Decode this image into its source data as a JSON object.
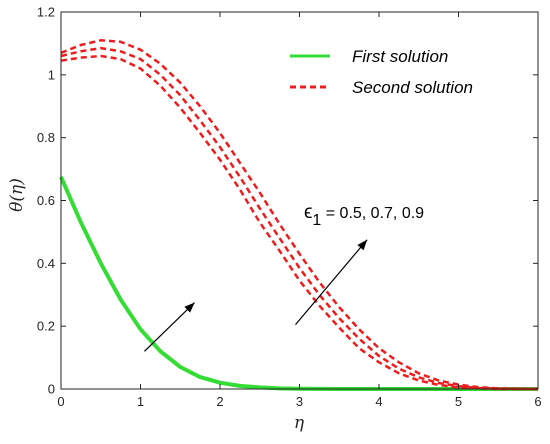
{
  "chart_data": {
    "type": "line",
    "xlabel": "η",
    "ylabel": "θ(η)",
    "xlim": [
      0,
      6
    ],
    "ylim": [
      0,
      1.2
    ],
    "xticks": [
      "0",
      "1",
      "2",
      "3",
      "4",
      "5",
      "6"
    ],
    "yticks": [
      "0",
      "0.2",
      "0.4",
      "0.6",
      "0.8",
      "1",
      "1.2"
    ],
    "grid": false,
    "legend_position": "top-right",
    "series": [
      {
        "name": "First solution",
        "style": "solid",
        "color": "#33dd33",
        "x": [
          0,
          0.25,
          0.5,
          0.75,
          1.0,
          1.25,
          1.5,
          1.75,
          2.0,
          2.25,
          2.5,
          2.75,
          3.0,
          3.5,
          4.0,
          5.0,
          6.0
        ],
        "y": [
          0.675,
          0.53,
          0.4,
          0.285,
          0.19,
          0.12,
          0.07,
          0.038,
          0.02,
          0.01,
          0.005,
          0.002,
          0.001,
          0,
          0,
          0,
          0
        ]
      },
      {
        "name": "Second solution",
        "style": "dashed",
        "color": "#ee1c1c",
        "x": [
          0,
          0.25,
          0.5,
          0.75,
          1.0,
          1.25,
          1.5,
          1.75,
          2.0,
          2.25,
          2.5,
          2.75,
          3.0,
          3.25,
          3.5,
          3.75,
          4.0,
          4.25,
          4.5,
          4.75,
          5.0,
          5.25,
          5.5,
          6.0
        ],
        "y": [
          1.045,
          1.055,
          1.06,
          1.05,
          1.02,
          0.965,
          0.895,
          0.815,
          0.73,
          0.635,
          0.53,
          0.44,
          0.345,
          0.265,
          0.195,
          0.13,
          0.085,
          0.05,
          0.027,
          0.013,
          0.005,
          0.002,
          0,
          0
        ]
      },
      {
        "name": "",
        "style": "dashed",
        "color": "#ee1c1c",
        "x": [
          0,
          0.25,
          0.5,
          0.75,
          1.0,
          1.25,
          1.5,
          1.75,
          2.0,
          2.25,
          2.5,
          2.75,
          3.0,
          3.25,
          3.5,
          3.75,
          4.0,
          4.25,
          4.5,
          4.75,
          5.0,
          5.25,
          5.5,
          6.0
        ],
        "y": [
          1.06,
          1.075,
          1.085,
          1.075,
          1.05,
          1.0,
          0.935,
          0.855,
          0.77,
          0.675,
          0.575,
          0.48,
          0.385,
          0.3,
          0.225,
          0.16,
          0.105,
          0.065,
          0.037,
          0.019,
          0.009,
          0.003,
          0.001,
          0
        ]
      },
      {
        "name": "",
        "style": "dashed",
        "color": "#ee1c1c",
        "x": [
          0,
          0.25,
          0.5,
          0.75,
          1.0,
          1.25,
          1.5,
          1.75,
          2.0,
          2.25,
          2.5,
          2.75,
          3.0,
          3.25,
          3.5,
          3.75,
          4.0,
          4.25,
          4.5,
          4.75,
          5.0,
          5.25,
          5.5,
          6.0
        ],
        "y": [
          1.07,
          1.095,
          1.11,
          1.105,
          1.08,
          1.035,
          0.975,
          0.9,
          0.815,
          0.72,
          0.625,
          0.525,
          0.43,
          0.34,
          0.26,
          0.19,
          0.13,
          0.085,
          0.05,
          0.027,
          0.014,
          0.006,
          0.002,
          0
        ]
      }
    ],
    "annotation": {
      "symbol": "ϵ",
      "subscript": "1",
      "text": " = 0.5, 0.7, 0.9"
    },
    "arrows": [
      {
        "from": [
          1.05,
          0.12
        ],
        "to": [
          1.68,
          0.275
        ]
      },
      {
        "from": [
          2.95,
          0.205
        ],
        "to": [
          3.85,
          0.475
        ]
      }
    ]
  }
}
